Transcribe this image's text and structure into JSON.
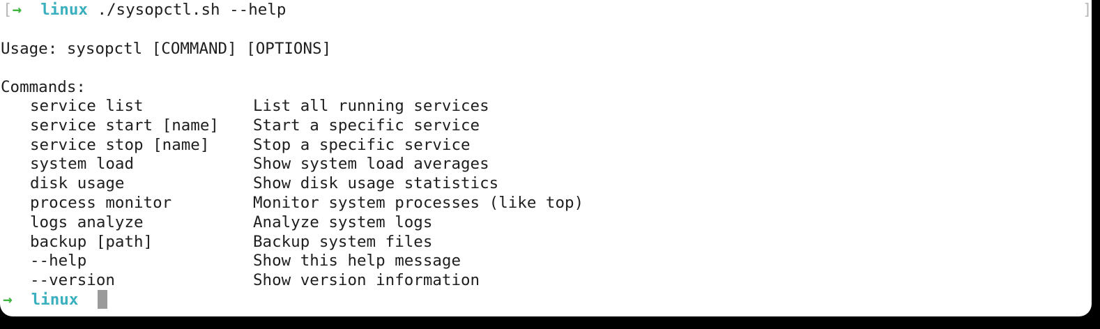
{
  "terminal": {
    "bracket_open": "[",
    "bracket_close": "]",
    "prompt_symbol": "→",
    "prompt_dir": "linux",
    "command": "./sysopctl.sh --help",
    "usage": "Usage: sysopctl [COMMAND] [OPTIONS]",
    "commands_header": "Commands:",
    "commands": [
      [
        "service list",
        "List all running services"
      ],
      [
        "service start [name]",
        "Start a specific service"
      ],
      [
        "service stop [name]",
        "Stop a specific service"
      ],
      [
        "system load",
        "Show system load averages"
      ],
      [
        "disk usage",
        "Show disk usage statistics"
      ],
      [
        "process monitor",
        "Monitor system processes (like top)"
      ],
      [
        "logs analyze",
        "Analyze system logs"
      ],
      [
        "backup [path]",
        "Backup system files"
      ],
      [
        "--help",
        "Show this help message"
      ],
      [
        "--version",
        "Show version information"
      ]
    ]
  }
}
